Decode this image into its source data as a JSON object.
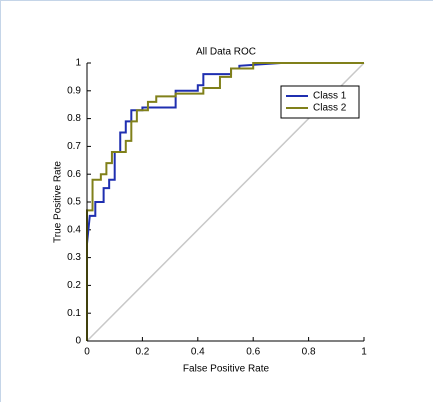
{
  "chart_data": {
    "type": "line",
    "title": "All Data ROC",
    "x_label": "False Positive Rate",
    "y_label": "True Positive Rate",
    "xlim": [
      0,
      1
    ],
    "ylim": [
      0,
      1
    ],
    "xticks": [
      0,
      0.2,
      0.4,
      0.6,
      0.8,
      1
    ],
    "yticks": [
      0,
      0.1,
      0.2,
      0.3,
      0.4,
      0.5,
      0.6,
      0.7,
      0.8,
      0.9,
      1
    ],
    "legend": "northeast",
    "series": [
      {
        "name": "Class 1",
        "color": "#1f2fb0",
        "x": [
          0,
          0,
          0.01,
          0.03,
          0.03,
          0.06,
          0.06,
          0.08,
          0.08,
          0.1,
          0.1,
          0.12,
          0.12,
          0.14,
          0.14,
          0.16,
          0.16,
          0.2,
          0.2,
          0.32,
          0.32,
          0.4,
          0.4,
          0.42,
          0.42,
          0.52,
          0.52,
          0.55,
          0.55,
          0.7,
          1
        ],
        "values": [
          0,
          0.35,
          0.45,
          0.45,
          0.5,
          0.5,
          0.55,
          0.55,
          0.58,
          0.58,
          0.68,
          0.68,
          0.75,
          0.75,
          0.79,
          0.79,
          0.83,
          0.83,
          0.84,
          0.84,
          0.9,
          0.9,
          0.92,
          0.92,
          0.96,
          0.96,
          0.98,
          0.98,
          0.99,
          1,
          1
        ]
      },
      {
        "name": "Class 2",
        "color": "#80801a",
        "x": [
          0,
          0,
          0.02,
          0.02,
          0.05,
          0.05,
          0.07,
          0.07,
          0.09,
          0.09,
          0.14,
          0.14,
          0.16,
          0.16,
          0.18,
          0.18,
          0.22,
          0.22,
          0.25,
          0.25,
          0.32,
          0.32,
          0.42,
          0.42,
          0.48,
          0.48,
          0.52,
          0.52,
          0.6,
          0.6,
          1
        ],
        "values": [
          0,
          0.47,
          0.47,
          0.58,
          0.58,
          0.6,
          0.6,
          0.64,
          0.64,
          0.68,
          0.68,
          0.72,
          0.72,
          0.79,
          0.79,
          0.83,
          0.83,
          0.86,
          0.86,
          0.88,
          0.88,
          0.89,
          0.89,
          0.91,
          0.91,
          0.95,
          0.95,
          0.98,
          0.98,
          1,
          1
        ]
      }
    ]
  }
}
